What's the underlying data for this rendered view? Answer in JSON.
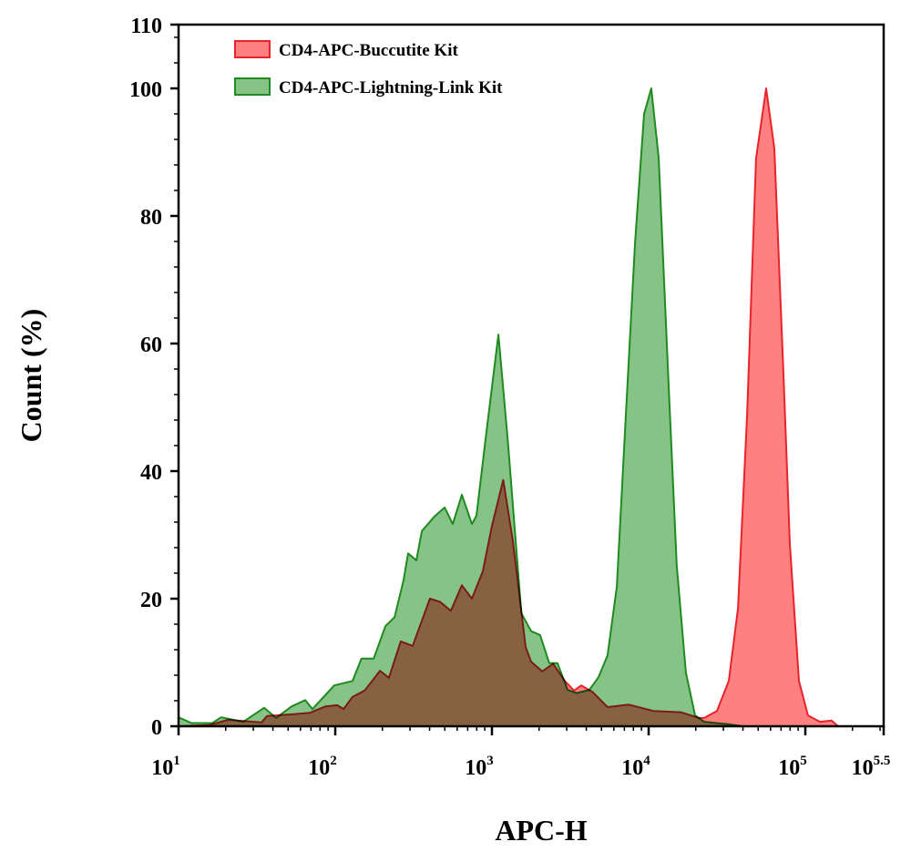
{
  "chart_data": {
    "type": "area",
    "title": "",
    "xlabel": "APC-H",
    "ylabel": "Count (%)",
    "xscale": "log",
    "xlim": [
      10,
      316228
    ],
    "ylim": [
      0,
      110
    ],
    "grid": false,
    "legend_position": "top-left",
    "x_tick_labels": [
      {
        "base": "10",
        "exp": "1",
        "value": 10
      },
      {
        "base": "10",
        "exp": "2",
        "value": 100
      },
      {
        "base": "10",
        "exp": "3",
        "value": 1000
      },
      {
        "base": "10",
        "exp": "4",
        "value": 10000
      },
      {
        "base": "10",
        "exp": "5",
        "value": 100000
      },
      {
        "base": "10",
        "exp": "5.5",
        "value": 316228
      }
    ],
    "y_tick_labels": [
      "0",
      "20",
      "40",
      "60",
      "80",
      "100",
      "110"
    ],
    "y_ticks": [
      0,
      20,
      40,
      60,
      80,
      100,
      110
    ],
    "series": [
      {
        "name": "CD4-APC-Lightning-Link Kit",
        "fill": "#86c386",
        "stroke": "#1f8a1f",
        "points": [
          [
            10,
            1.4
          ],
          [
            12.1,
            0.5
          ],
          [
            16.4,
            0.5
          ],
          [
            18.7,
            1.4
          ],
          [
            25.9,
            0.7
          ],
          [
            35.2,
            2.9
          ],
          [
            41.9,
            1.3
          ],
          [
            52.6,
            3.1
          ],
          [
            64.3,
            4.1
          ],
          [
            71.6,
            2.7
          ],
          [
            98.6,
            6.4
          ],
          [
            129,
            7.1
          ],
          [
            147,
            10.6
          ],
          [
            176,
            10.6
          ],
          [
            209,
            15.7
          ],
          [
            239,
            17.1
          ],
          [
            273,
            22.9
          ],
          [
            292,
            27.1
          ],
          [
            329,
            26
          ],
          [
            357,
            30.6
          ],
          [
            430,
            32.9
          ],
          [
            499,
            34.3
          ],
          [
            562,
            31.7
          ],
          [
            643,
            36.3
          ],
          [
            745,
            31.7
          ],
          [
            796,
            33
          ],
          [
            910,
            45
          ],
          [
            1100,
            61.4
          ],
          [
            1260,
            45
          ],
          [
            1540,
            17.7
          ],
          [
            1780,
            14.9
          ],
          [
            2030,
            14.3
          ],
          [
            2320,
            9.9
          ],
          [
            2620,
            9.9
          ],
          [
            3040,
            5.7
          ],
          [
            3470,
            5.2
          ],
          [
            4190,
            5.7
          ],
          [
            4790,
            7.7
          ],
          [
            5470,
            11.1
          ],
          [
            6270,
            21.9
          ],
          [
            7160,
            48.8
          ],
          [
            8190,
            75.8
          ],
          [
            9350,
            96
          ],
          [
            10400,
            100
          ],
          [
            11600,
            89
          ],
          [
            13300,
            55.6
          ],
          [
            15100,
            25.3
          ],
          [
            17300,
            8.4
          ],
          [
            19800,
            1.7
          ],
          [
            22600,
            0.7
          ],
          [
            32500,
            0.3
          ],
          [
            40000,
            0
          ]
        ]
      },
      {
        "name": "CD4-APC-Buccutite Kit",
        "fill": "#ff8080",
        "stroke": "#e8232a",
        "points": [
          [
            10,
            0
          ],
          [
            15.8,
            0.2
          ],
          [
            20.6,
            1.0
          ],
          [
            33.8,
            0.6
          ],
          [
            36.7,
            1.6
          ],
          [
            54.7,
            1.9
          ],
          [
            68.7,
            2.1
          ],
          [
            86.3,
            3.1
          ],
          [
            103,
            3.3
          ],
          [
            113,
            2.7
          ],
          [
            129,
            4.6
          ],
          [
            154,
            5.6
          ],
          [
            193,
            8.7
          ],
          [
            220,
            7.6
          ],
          [
            262,
            13.3
          ],
          [
            312,
            12.6
          ],
          [
            402,
            20
          ],
          [
            467,
            19.5
          ],
          [
            547,
            18.1
          ],
          [
            643,
            22.1
          ],
          [
            745,
            20
          ],
          [
            875,
            24.3
          ],
          [
            1000,
            31.4
          ],
          [
            1180,
            38.6
          ],
          [
            1360,
            29
          ],
          [
            1640,
            12.4
          ],
          [
            1780,
            10.1
          ],
          [
            2090,
            8.6
          ],
          [
            2460,
            9.8
          ],
          [
            2920,
            7.1
          ],
          [
            3340,
            5.6
          ],
          [
            3720,
            6.4
          ],
          [
            4370,
            5.4
          ],
          [
            5470,
            3.0
          ],
          [
            7450,
            3.4
          ],
          [
            10700,
            2.4
          ],
          [
            16000,
            2.2
          ],
          [
            20900,
            1.3
          ],
          [
            22600,
            1.3
          ],
          [
            27300,
            2.4
          ],
          [
            32500,
            7.1
          ],
          [
            37200,
            18.5
          ],
          [
            42500,
            48.8
          ],
          [
            48500,
            89
          ],
          [
            56200,
            100
          ],
          [
            63400,
            90.6
          ],
          [
            72400,
            55.6
          ],
          [
            79600,
            28.6
          ],
          [
            91000,
            7.1
          ],
          [
            104000,
            1.7
          ],
          [
            124000,
            0.7
          ],
          [
            147000,
            0.9
          ],
          [
            162000,
            0
          ]
        ]
      }
    ]
  }
}
